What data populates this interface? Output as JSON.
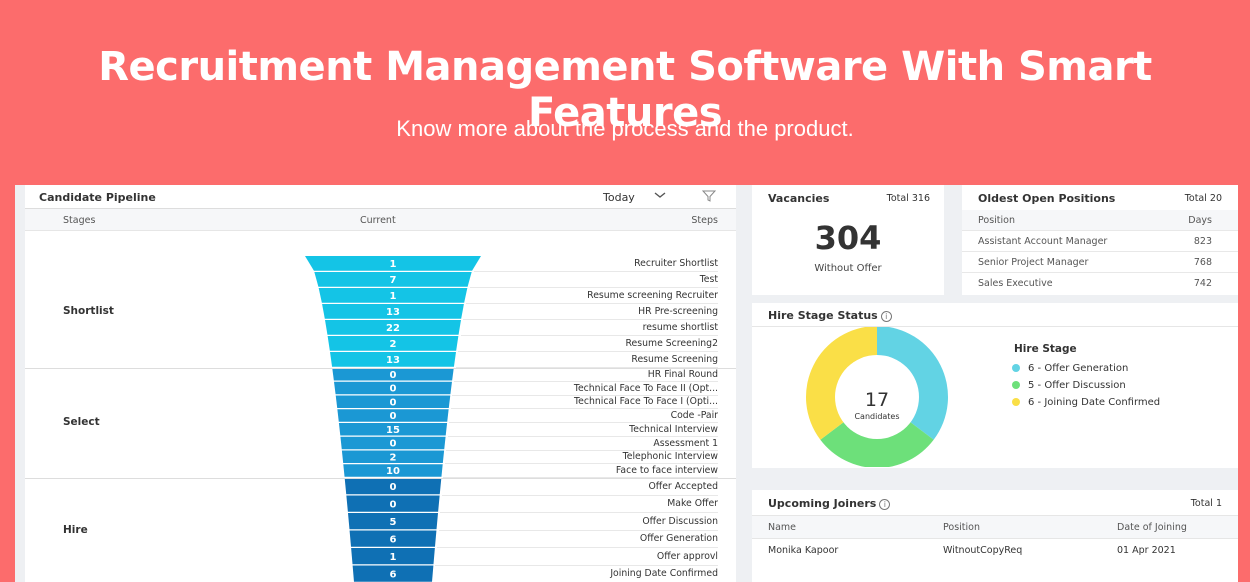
{
  "hero": {
    "title": "Recruitment Management Software With Smart Features",
    "subtitle": "Know more about the process and the product."
  },
  "pipeline": {
    "title": "Candidate Pipeline",
    "filter": "Today",
    "columns": {
      "stages": "Stages",
      "current": "Current",
      "steps": "Steps"
    },
    "stages": [
      {
        "label": "Shortlist",
        "color": "#14c4e6",
        "steps": [
          {
            "label": "Recruiter Shortlist",
            "value": 1
          },
          {
            "label": "Test",
            "value": 7
          },
          {
            "label": "Resume screening Recruiter",
            "value": 1
          },
          {
            "label": "HR Pre-screening",
            "value": 13
          },
          {
            "label": "resume shortlist",
            "value": 22
          },
          {
            "label": "Resume Screening2",
            "value": 2
          },
          {
            "label": "Resume Screening",
            "value": 13
          }
        ]
      },
      {
        "label": "Select",
        "color": "#1b98d4",
        "steps": [
          {
            "label": "HR Final Round",
            "value": 0
          },
          {
            "label": "Technical Face To Face II (Opt...",
            "value": 0
          },
          {
            "label": "Technical Face To Face I (Opti...",
            "value": 0
          },
          {
            "label": "Code -Pair",
            "value": 0
          },
          {
            "label": "Technical Interview",
            "value": 15
          },
          {
            "label": "Assessment 1",
            "value": 0
          },
          {
            "label": "Telephonic Interview",
            "value": 2
          },
          {
            "label": "Face to face interview",
            "value": 10
          }
        ]
      },
      {
        "label": "Hire",
        "color": "#0f70b4",
        "steps": [
          {
            "label": "Offer Accepted",
            "value": 0
          },
          {
            "label": "Make Offer",
            "value": 0
          },
          {
            "label": "Offer Discussion",
            "value": 5
          },
          {
            "label": "Offer Generation",
            "value": 6
          },
          {
            "label": "Offer approvl",
            "value": 1
          },
          {
            "label": "Joining Date Confirmed",
            "value": 6
          }
        ]
      }
    ]
  },
  "vacancies": {
    "title": "Vacancies",
    "total": "Total 316",
    "value": "304",
    "caption": "Without Offer"
  },
  "oldest": {
    "title": "Oldest Open Positions",
    "total": "Total 20",
    "columns": {
      "position": "Position",
      "days": "Days"
    },
    "rows": [
      {
        "position": "Assistant Account Manager",
        "days": "823"
      },
      {
        "position": "Senior Project Manager",
        "days": "768"
      },
      {
        "position": "Sales Executive",
        "days": "742"
      }
    ]
  },
  "hire_status": {
    "title": "Hire Stage Status",
    "center_value": "17",
    "center_label": "Candidates",
    "legend_title": "Hire Stage",
    "items": [
      {
        "label": "6 - Offer Generation",
        "value": 6,
        "color": "#62d3e4"
      },
      {
        "label": "5 - Offer Discussion",
        "value": 5,
        "color": "#6de07a"
      },
      {
        "label": "6 - Joining Date Confirmed",
        "value": 6,
        "color": "#fadf47"
      }
    ]
  },
  "upcoming": {
    "title": "Upcoming Joiners",
    "total": "Total 1",
    "columns": {
      "name": "Name",
      "position": "Position",
      "date": "Date of Joining"
    },
    "rows": [
      {
        "name": "Monika Kapoor",
        "position": "WitnoutCopyReq",
        "date": "01 Apr 2021"
      }
    ]
  }
}
